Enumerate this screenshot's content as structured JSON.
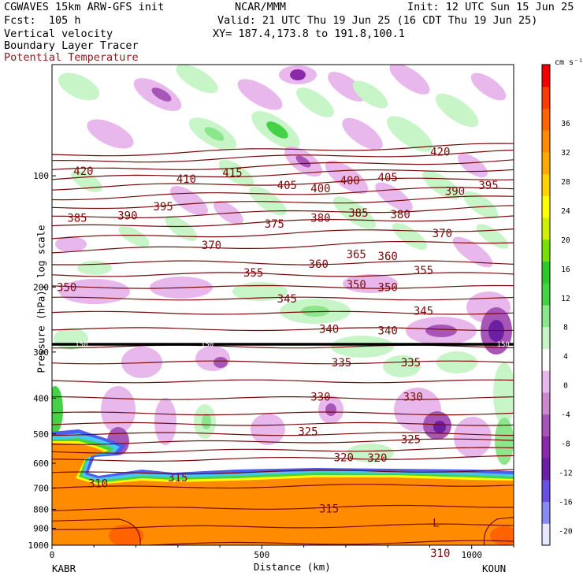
{
  "header": {
    "model": "CGWAVES 15km ARW-GFS init",
    "org": "NCAR/MMM",
    "init": "Init: 12 UTC Sun 15 Jun 25",
    "fcst": "Fcst:  105 h",
    "valid": "Valid: 21 UTC Thu 19 Jun 25 (16 CDT Thu 19 Jun 25)",
    "field1": "Vertical velocity",
    "xy": "XY= 187.4,173.8 to 191.8,100.1",
    "field2": "Boundary Layer Tracer",
    "field3": "Potential Temperature",
    "field3_color": "#8b1a1a"
  },
  "chart_data": {
    "type": "heatmap",
    "xlabel": "Distance (km)",
    "ylabel": "Pressure (hPa), log scale",
    "xlim": [
      0,
      1100
    ],
    "ylim": [
      1000,
      50
    ],
    "x_ticks": [
      "0",
      "500",
      "1000"
    ],
    "y_ticks": [
      "100",
      "200",
      "300",
      "400",
      "500",
      "600",
      "700",
      "800",
      "900",
      "1000"
    ],
    "y_tick_values": [
      100,
      200,
      300,
      400,
      500,
      600,
      700,
      800,
      900,
      1000
    ],
    "endpoints": {
      "left": "KABR",
      "right": "KOUN"
    },
    "colorbar": {
      "unit": "cm s⁻¹",
      "ticks": [
        "36",
        "32",
        "28",
        "24",
        "20",
        "16",
        "12",
        "8",
        "4",
        "0",
        "-4",
        "-8",
        "-12",
        "-16",
        "-20"
      ],
      "colors": [
        "#e8e8ff",
        "#8a8af0",
        "#6a50e0",
        "#6a20a0",
        "#8a2aa8",
        "#a855b8",
        "#cc88cc",
        "#e8b8ec",
        "#ffffff",
        "#c8f5c8",
        "#8ce68c",
        "#46d246",
        "#2ec82e",
        "#78e000",
        "#d0f000",
        "#ffff00",
        "#ffd200",
        "#ffaa00",
        "#ff8c00",
        "#ff6400",
        "#ff3c00",
        "#f00000"
      ]
    },
    "theta_labels": [
      {
        "text": "420",
        "x": 75,
        "p": 97
      },
      {
        "text": "410",
        "x": 320,
        "p": 102
      },
      {
        "text": "415",
        "x": 430,
        "p": 98
      },
      {
        "text": "405",
        "x": 560,
        "p": 106
      },
      {
        "text": "400",
        "x": 640,
        "p": 108
      },
      {
        "text": "400",
        "x": 710,
        "p": 103
      },
      {
        "text": "405",
        "x": 800,
        "p": 101
      },
      {
        "text": "420",
        "x": 925,
        "p": 86
      },
      {
        "text": "390",
        "x": 960,
        "p": 110
      },
      {
        "text": "395",
        "x": 1040,
        "p": 106
      },
      {
        "text": "385",
        "x": 60,
        "p": 130
      },
      {
        "text": "390",
        "x": 180,
        "p": 128
      },
      {
        "text": "395",
        "x": 265,
        "p": 121
      },
      {
        "text": "375",
        "x": 530,
        "p": 135
      },
      {
        "text": "380",
        "x": 640,
        "p": 130
      },
      {
        "text": "385",
        "x": 730,
        "p": 126
      },
      {
        "text": "380",
        "x": 830,
        "p": 127
      },
      {
        "text": "370",
        "x": 930,
        "p": 143
      },
      {
        "text": "370",
        "x": 380,
        "p": 154
      },
      {
        "text": "360",
        "x": 635,
        "p": 173
      },
      {
        "text": "365",
        "x": 725,
        "p": 163
      },
      {
        "text": "360",
        "x": 800,
        "p": 165
      },
      {
        "text": "350",
        "x": 35,
        "p": 200
      },
      {
        "text": "355",
        "x": 480,
        "p": 183
      },
      {
        "text": "350",
        "x": 725,
        "p": 197
      },
      {
        "text": "355",
        "x": 885,
        "p": 180
      },
      {
        "text": "350",
        "x": 800,
        "p": 200
      },
      {
        "text": "345",
        "x": 560,
        "p": 215
      },
      {
        "text": "345",
        "x": 885,
        "p": 232
      },
      {
        "text": "340",
        "x": 660,
        "p": 260
      },
      {
        "text": "340",
        "x": 800,
        "p": 262
      },
      {
        "text": "335",
        "x": 690,
        "p": 320
      },
      {
        "text": "335",
        "x": 855,
        "p": 320
      },
      {
        "text": "330",
        "x": 640,
        "p": 396
      },
      {
        "text": "330",
        "x": 860,
        "p": 396
      },
      {
        "text": "325",
        "x": 610,
        "p": 492
      },
      {
        "text": "325",
        "x": 855,
        "p": 516
      },
      {
        "text": "320",
        "x": 695,
        "p": 578
      },
      {
        "text": "320",
        "x": 775,
        "p": 580
      },
      {
        "text": "310",
        "x": 110,
        "p": 680
      },
      {
        "text": "315",
        "x": 300,
        "p": 655
      },
      {
        "text": "315",
        "x": 660,
        "p": 795
      },
      {
        "text": "310",
        "x": 925,
        "p": 1050
      }
    ],
    "tropopause_label": "150",
    "low_marker": "L"
  }
}
